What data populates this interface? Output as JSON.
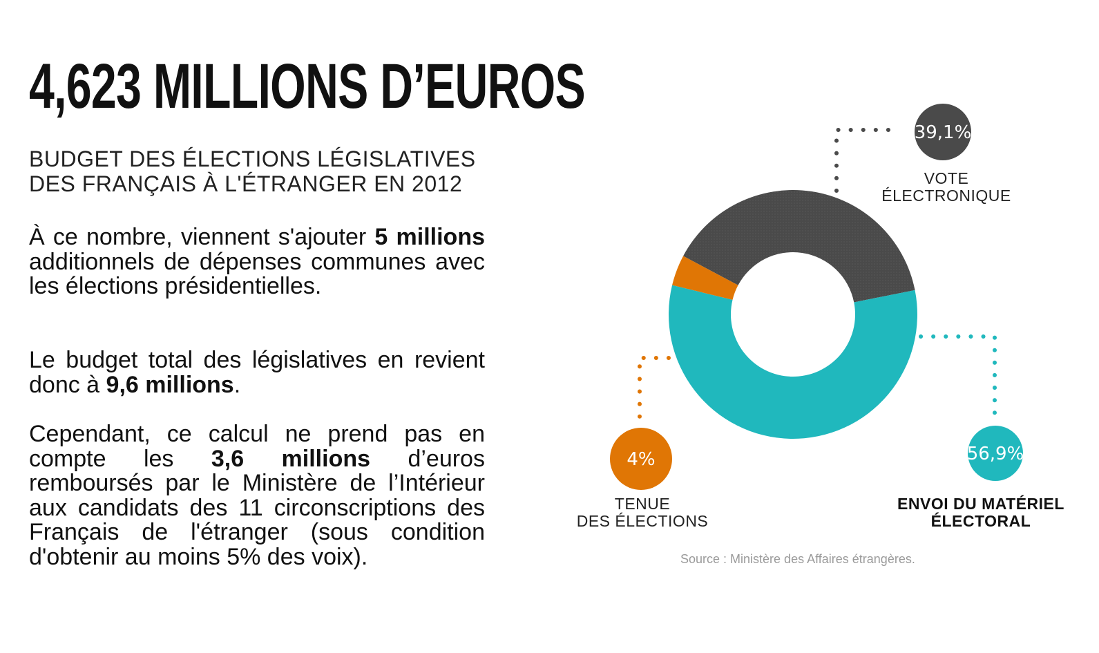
{
  "headline": "4,623 MILLIONS D’EUROS",
  "subtitle_line1": "BUDGET DES ÉLECTIONS LÉGISLATIVES",
  "subtitle_line2": "DES FRANÇAIS À L'ÉTRANGER EN 2012",
  "paragraph1": {
    "before": "À ce nombre, viennent s'ajouter ",
    "bold": "5 millions",
    "after": " additionnels de dépenses communes avec les élections présidentielles."
  },
  "paragraph2": {
    "before": "Le budget total des législatives en revient donc à ",
    "bold": "9,6 millions",
    "after": "."
  },
  "paragraph3": {
    "before": "Cependant, ce calcul ne prend pas en compte les ",
    "bold": "3,6 millions",
    "after": " d’euros remboursés par le Ministère de l’Intérieur aux candidats des 11 circonscriptions des Français de l'étranger (sous condition d'obtenir au moins 5% des voix)."
  },
  "source": "Source : Ministère des Affaires étrangères.",
  "chart_data": {
    "type": "pie",
    "variant": "donut",
    "categories": [
      "VOTE ÉLECTRONIQUE",
      "ENVOI DU MATÉRIEL ÉLECTORAL",
      "TENUE DES ÉLECTIONS"
    ],
    "values": [
      39.1,
      56.9,
      4
    ],
    "value_labels": [
      "39,1%",
      "56,9%",
      "4%"
    ],
    "label_lines": [
      [
        "VOTE",
        "ÉLECTRONIQUE"
      ],
      [
        "ENVOI DU MATÉRIEL",
        "ÉLECTORAL"
      ],
      [
        "TENUE",
        "DES ÉLECTIONS"
      ]
    ],
    "colors": [
      "#4a4a4a",
      "#20b8bd",
      "#e07605"
    ],
    "unit": "%"
  }
}
